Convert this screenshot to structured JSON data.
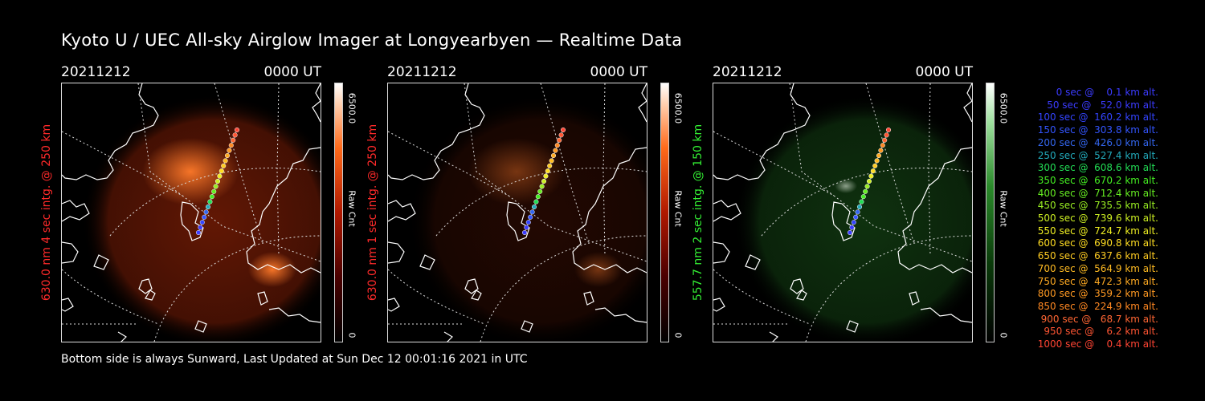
{
  "title": "Kyoto U / UEC All-sky Airglow Imager at Longyearbyen — Realtime Data",
  "footer": "Bottom side is always Sunward, Last Updated at Sun Dec 12 00:01:16 2021 in UTC",
  "panels": [
    {
      "date": "20211212",
      "time": "0000 UT",
      "label": "630.0 nm 4 sec intg. @ 250 km",
      "label_color": "#ff2a2a",
      "cbar_max": "6500.0",
      "cbar_unit": "Raw Cnt",
      "cbar_min": "0",
      "colormap": "red",
      "glow_level": 0.85
    },
    {
      "date": "20211212",
      "time": "0000 UT",
      "label": "630.0 nm 1 sec intg. @ 250 km",
      "label_color": "#ff2a2a",
      "cbar_max": "6500.0",
      "cbar_unit": "Raw Cnt",
      "cbar_min": "0",
      "colormap": "red",
      "glow_level": 0.3
    },
    {
      "date": "20211212",
      "time": "0000 UT",
      "label": "557.7 nm 2 sec intg. @ 150 km",
      "label_color": "#33ee33",
      "cbar_max": "6500.0",
      "cbar_unit": "Raw Cnt",
      "cbar_min": "0",
      "colormap": "green",
      "glow_level": 0.45
    }
  ],
  "legend": [
    {
      "text": "   0 sec @    0.1 km alt.",
      "color": "#3b3bff"
    },
    {
      "text": "  50 sec @   52.0 km alt.",
      "color": "#3b3bff"
    },
    {
      "text": " 100 sec @  160.2 km alt.",
      "color": "#3344ff"
    },
    {
      "text": " 150 sec @  303.8 km alt.",
      "color": "#3355ff"
    },
    {
      "text": " 200 sec @  426.0 km alt.",
      "color": "#3366ee"
    },
    {
      "text": " 250 sec @  527.4 km alt.",
      "color": "#22aabb"
    },
    {
      "text": " 300 sec @  608.6 km alt.",
      "color": "#22dd55"
    },
    {
      "text": " 350 sec @  670.2 km alt.",
      "color": "#44ee22"
    },
    {
      "text": " 400 sec @  712.4 km alt.",
      "color": "#66ee22"
    },
    {
      "text": " 450 sec @  735.5 km alt.",
      "color": "#99ee22"
    },
    {
      "text": " 500 sec @  739.6 km alt.",
      "color": "#ccee22"
    },
    {
      "text": " 550 sec @  724.7 km alt.",
      "color": "#eeee22"
    },
    {
      "text": " 600 sec @  690.8 km alt.",
      "color": "#ffdd22"
    },
    {
      "text": " 650 sec @  637.6 km alt.",
      "color": "#ffcc22"
    },
    {
      "text": " 700 sec @  564.9 km alt.",
      "color": "#ffbb22"
    },
    {
      "text": " 750 sec @  472.3 km alt.",
      "color": "#ffaa22"
    },
    {
      "text": " 800 sec @  359.2 km alt.",
      "color": "#ff9922"
    },
    {
      "text": " 850 sec @  224.9 km alt.",
      "color": "#ff8822"
    },
    {
      "text": " 900 sec @   68.7 km alt.",
      "color": "#ff6633"
    },
    {
      "text": " 950 sec @    6.2 km alt.",
      "color": "#ff5533"
    },
    {
      "text": "1000 sec @    0.4 km alt.",
      "color": "#ff4433"
    }
  ]
}
